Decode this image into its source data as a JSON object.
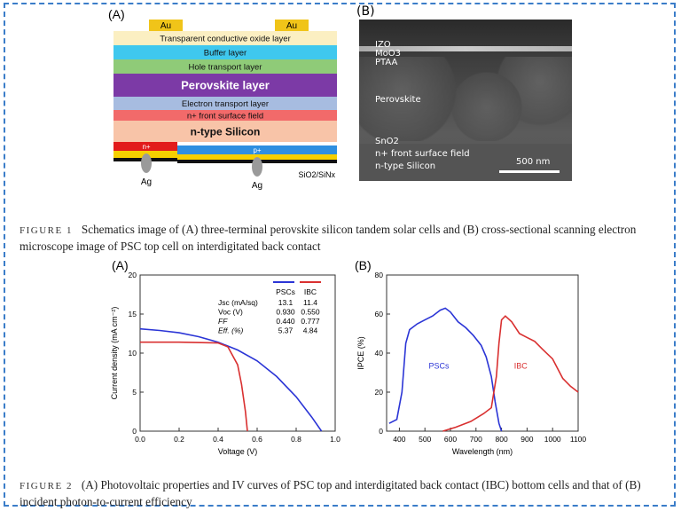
{
  "figure1": {
    "panel_a_label": "(A)",
    "panel_b_label": "(B)",
    "schematic": {
      "contact_left": "Au",
      "contact_right": "Au",
      "layers": [
        {
          "name": "Transparent conductive oxide layer",
          "color": "#fbefc2"
        },
        {
          "name": "Buffer layer",
          "color": "#3fc8ee"
        },
        {
          "name": "Hole transport layer",
          "color": "#8fcb78"
        },
        {
          "name": "Perovskite layer",
          "color": "#7c3aa6"
        },
        {
          "name": "Electron transport layer",
          "color": "#a7bce0"
        },
        {
          "name": "n+ front surface field",
          "color": "#f26a6a"
        },
        {
          "name": "n-type Silicon",
          "color": "#f8c4a8"
        }
      ],
      "n_plus": "n+",
      "p_plus": "p+",
      "ag_left": "Ag",
      "ag_right": "Ag",
      "passivation": "SiO2/SiNx"
    },
    "sem": {
      "labels": [
        "IZO",
        "MoO3",
        "PTAA",
        "Perovskite",
        "SnO2",
        "n+ front surface field",
        "n-type Silicon"
      ],
      "scale_bar": "500 nm"
    },
    "caption_label": "FIGURE 1",
    "caption_text": "Schematics image of (A) three-terminal perovskite silicon tandem solar cells and (B) cross-sectional scanning electron microscope image of PSC top cell on interdigitated back contact"
  },
  "figure2": {
    "caption_label": "FIGURE 2",
    "caption_text": "(A) Photovoltaic properties and IV curves of PSC top and interdigitated back contact (IBC) bottom cells and that of (B) incident photon-to-current efficiency",
    "colors": {
      "psc": "#2b35d6",
      "ibc": "#d93030"
    }
  },
  "chart_data": [
    {
      "type": "line",
      "panel": "(A)",
      "xlabel": "Voltage (V)",
      "ylabel": "Current density (mA cm⁻²)",
      "xlim": [
        0.0,
        1.0
      ],
      "ylim": [
        0,
        20
      ],
      "xticks": [
        "0.0",
        "0.2",
        "0.4",
        "0.6",
        "0.8",
        "1.0"
      ],
      "yticks": [
        "0",
        "5",
        "10",
        "15",
        "20"
      ],
      "series": [
        {
          "name": "PSCs",
          "x": [
            0.0,
            0.1,
            0.2,
            0.3,
            0.4,
            0.5,
            0.6,
            0.7,
            0.8,
            0.88,
            0.93
          ],
          "y": [
            13.1,
            12.9,
            12.6,
            12.1,
            11.4,
            10.4,
            9.0,
            7.0,
            4.4,
            1.8,
            0.0
          ]
        },
        {
          "name": "IBC",
          "x": [
            0.0,
            0.2,
            0.4,
            0.45,
            0.5,
            0.52,
            0.54,
            0.55
          ],
          "y": [
            11.4,
            11.4,
            11.3,
            10.8,
            8.5,
            6.0,
            2.5,
            0.0
          ]
        }
      ],
      "table": {
        "headers": [
          "",
          "PSCs",
          "IBC"
        ],
        "rows": [
          [
            "Jsc (mA/sq)",
            "13.1",
            "11.4"
          ],
          [
            "Voc (V)",
            "0.930",
            "0.550"
          ],
          [
            "FF",
            "0.440",
            "0.777"
          ],
          [
            "Eff. (%)",
            "5.37",
            "4.84"
          ]
        ]
      }
    },
    {
      "type": "line",
      "panel": "(B)",
      "xlabel": "Wavelength (nm)",
      "ylabel": "IPCE (%)",
      "xlim": [
        350,
        1100
      ],
      "ylim": [
        0,
        80
      ],
      "xticks": [
        "400",
        "500",
        "600",
        "700",
        "800",
        "900",
        "1000",
        "1100"
      ],
      "yticks": [
        "0",
        "20",
        "40",
        "60",
        "80"
      ],
      "series": [
        {
          "name": "PSCs",
          "label": "PSCs",
          "x": [
            360,
            390,
            410,
            425,
            440,
            470,
            500,
            530,
            560,
            580,
            600,
            630,
            660,
            690,
            720,
            740,
            760,
            775,
            790,
            800
          ],
          "y": [
            4,
            6,
            20,
            45,
            52,
            55,
            57,
            59,
            62,
            63,
            61,
            56,
            53,
            49,
            44,
            38,
            28,
            15,
            4,
            0
          ]
        },
        {
          "name": "IBC",
          "label": "IBC",
          "x": [
            570,
            620,
            680,
            730,
            760,
            780,
            790,
            800,
            815,
            840,
            870,
            900,
            930,
            960,
            1000,
            1040,
            1070,
            1100
          ],
          "y": [
            0,
            2,
            5,
            9,
            12,
            28,
            45,
            57,
            59,
            56,
            50,
            48,
            46,
            42,
            37,
            27,
            23,
            20
          ]
        }
      ]
    }
  ]
}
